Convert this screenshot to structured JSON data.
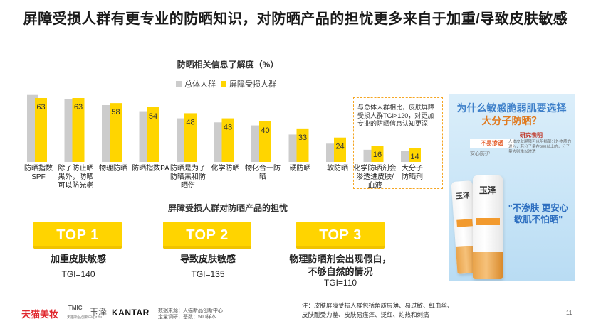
{
  "title": "屏障受损人群有更专业的防晒知识，对防晒产品的担忧更多来自于加重/导致皮肤敏感",
  "chart_data": {
    "type": "bar",
    "title": "防晒相关信息了解度（%）",
    "categories": [
      "防晒指数SPF",
      "除了防止晒黑外，防晒可以防光老",
      "物理防晒",
      "防晒指数PA",
      "防晒是为了防晒黑和防晒伤",
      "化学防晒",
      "物化合一防晒",
      "硬防晒",
      "软防晒",
      "化学防晒剂会渗透进皮肤/血液",
      "大分子防晒剂"
    ],
    "category_lines": [
      [
        "防晒指数",
        "SPF"
      ],
      [
        "除了防止晒",
        "黑外，防晒",
        "可以防光老"
      ],
      [
        "物理防晒"
      ],
      [
        "防晒指数PA"
      ],
      [
        "防晒是为了",
        "防晒黑和防",
        "晒伤"
      ],
      [
        "化学防晒"
      ],
      [
        "物化合一防",
        "晒"
      ],
      [
        "硬防晒"
      ],
      [
        "软防晒"
      ],
      [
        "化学防晒剂会",
        "渗透进皮肤/",
        "血液"
      ],
      [
        "大分子",
        "防晒剂"
      ]
    ],
    "series": [
      {
        "name": "总体人群",
        "color": "#cccccc",
        "values": [
          66,
          62,
          56,
          50,
          43,
          39,
          36,
          27,
          18,
          12,
          11
        ]
      },
      {
        "name": "屏障受损人群",
        "color": "#ffd500",
        "values": [
          63,
          63,
          58,
          54,
          48,
          43,
          40,
          33,
          24,
          16,
          14
        ]
      }
    ],
    "data_labels_series": "屏障受损人群",
    "ylim": [
      0,
      70
    ],
    "grid": false,
    "legend_position": "top"
  },
  "callout": {
    "text": "与总体人群相比，皮肤屏障受损人群TGI>120，对更加专业的防晒信息认知更深"
  },
  "concerns": {
    "title": "屏障受损人群对防晒产品的担忧",
    "items": [
      {
        "rank": "TOP 1",
        "text": "加重皮肤敏感",
        "tgi": "TGI=140"
      },
      {
        "rank": "TOP 2",
        "text": "导致皮肤敏感",
        "tgi": "TGI=135"
      },
      {
        "rank": "TOP 3",
        "text": "物理防晒剂会出现假白，不够自然的情况",
        "text_line1": "物理防晒剂会出现假白，",
        "text_line2": "不够自然的情况",
        "tgi": "TGI=110"
      }
    ]
  },
  "product_panel": {
    "title_line1": "为什么敏感脆弱肌要选择",
    "title_line2": "大分子防晒？",
    "tag": "不易渗透",
    "sub": "安心防护",
    "research": "研究表明",
    "desc": "人体皮肤屏障可以阻挡部分外物质的进入，若分子量在500以上的，分子量大则难以渗透",
    "brand": "玉泽",
    "slogan_line1": "\"不渗肤 更安心",
    "slogan_line2": "敏肌不怕晒\""
  },
  "footer": {
    "logo_tmall": "天猫美妆",
    "logo_tmic": "TMIC",
    "logo_tmic_sub": "天猫新品创新中心",
    "logo_yuze": "玉泽",
    "logo_yuze_sub": "Dr.Yu",
    "logo_kantar": "KANTAR",
    "source_line1": "数据来源：天猫新品创新中心",
    "source_line2": "定量调研，基数：500样本",
    "note_line1": "注：皮肤屏障受损人群包括角质层薄、易过敏、红血丝、",
    "note_line2": "皮肤耐受力差、皮肤易瘙痒、泛红、灼热和刺痛",
    "page": "11"
  }
}
